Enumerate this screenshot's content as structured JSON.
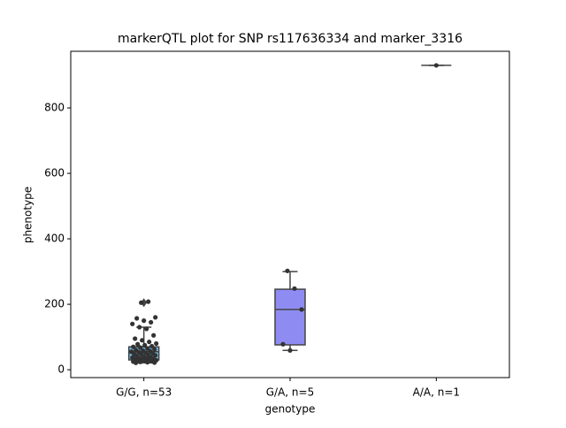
{
  "chart_data": {
    "type": "box",
    "title": "markerQTL plot for SNP rs117636334 and marker_3316",
    "x_label": "genotype",
    "y_label": "phenotype",
    "categories": [
      "G/G, n=53",
      "G/A, n=5",
      "A/A, n=1"
    ],
    "boxes": [
      {
        "whislo": 21,
        "q1": 30,
        "med": 55,
        "q3": 70,
        "whishi": 130,
        "fliers": [
          205
        ],
        "color": "#6fb8e6"
      },
      {
        "whislo": 59,
        "q1": 76,
        "med": 184,
        "q3": 246,
        "whishi": 300,
        "fliers": [],
        "color": "#8e8cf2"
      },
      {
        "whislo": 930,
        "q1": 930,
        "med": 930,
        "q3": 930,
        "whishi": 930,
        "fliers": [],
        "color": "#b48cf2"
      }
    ],
    "points": [
      [
        205,
        208,
        160,
        157,
        150,
        145,
        140,
        130,
        125,
        105,
        95,
        90,
        85,
        80,
        78,
        75,
        72,
        70,
        68,
        65,
        62,
        60,
        58,
        57,
        55,
        54,
        52,
        50,
        48,
        47,
        45,
        44,
        42,
        40,
        38,
        37,
        35,
        34,
        33,
        32,
        31,
        30,
        29,
        28,
        27,
        26,
        25,
        24,
        23,
        22,
        21,
        30,
        36
      ],
      [
        302,
        248,
        184,
        78,
        59
      ],
      [
        930
      ]
    ],
    "point_color": "#333333",
    "ylim": [
      -24,
      973
    ],
    "yticks": [
      0,
      200,
      400,
      600,
      800
    ]
  }
}
